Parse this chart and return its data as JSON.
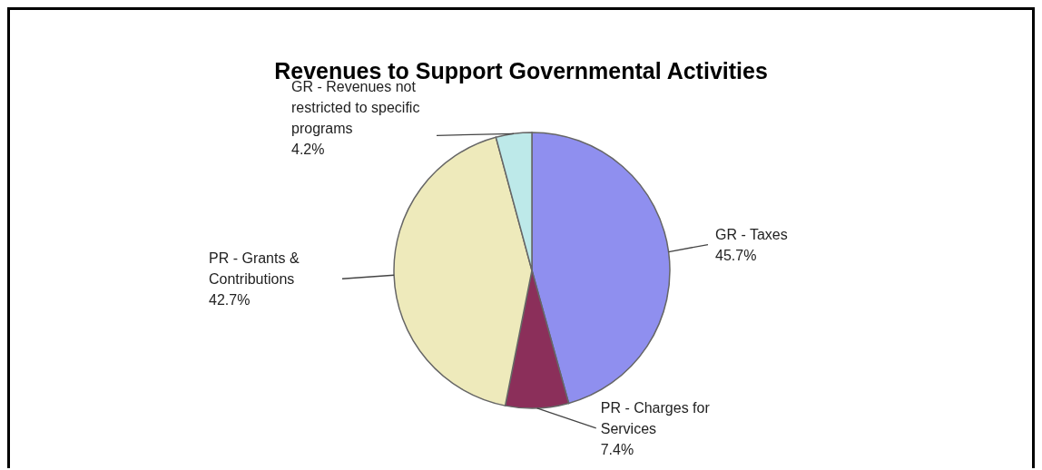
{
  "chart_data": {
    "type": "pie",
    "title": "Revenues to Support Governmental Activities",
    "categories": [
      "GR - Taxes",
      "PR - Charges for Services",
      "PR - Grants & Contributions",
      "GR - Revenues not restricted to specific programs"
    ],
    "values": [
      45.7,
      7.4,
      42.7,
      4.2
    ],
    "colors": [
      "#8f8fef",
      "#8b2f5a",
      "#eeeabb",
      "#bde9e9"
    ],
    "value_labels": [
      "45.7%",
      "7.4%",
      "42.7%",
      "4.2%"
    ],
    "legend": false
  }
}
